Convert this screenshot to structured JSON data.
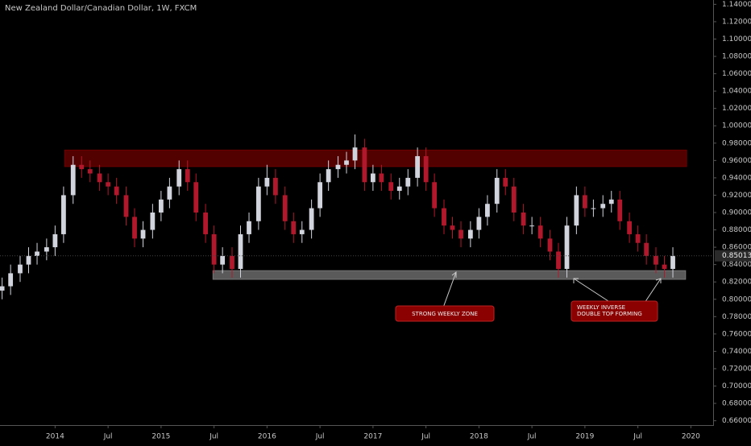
{
  "chart_data": {
    "type": "candlestick",
    "title": "New Zealand Dollar/Canadian Dollar, 1W, FXCM",
    "up_color": "#d1d4dc",
    "down_color": "#b2182b",
    "x": [
      2013.5,
      2013.58,
      2013.67,
      2013.75,
      2013.83,
      2013.92,
      2014.0,
      2014.08,
      2014.17,
      2014.25,
      2014.33,
      2014.42,
      2014.5,
      2014.58,
      2014.67,
      2014.75,
      2014.83,
      2014.92,
      2015.0,
      2015.08,
      2015.17,
      2015.25,
      2015.33,
      2015.42,
      2015.5,
      2015.58,
      2015.67,
      2015.75,
      2015.83,
      2015.92,
      2016.0,
      2016.08,
      2016.17,
      2016.25,
      2016.33,
      2016.42,
      2016.5,
      2016.58,
      2016.67,
      2016.75,
      2016.83,
      2016.92,
      2017.0,
      2017.08,
      2017.17,
      2017.25,
      2017.33,
      2017.42,
      2017.5,
      2017.58,
      2017.67,
      2017.75,
      2017.83,
      2017.92,
      2018.0,
      2018.08,
      2018.17,
      2018.25,
      2018.33,
      2018.42,
      2018.5,
      2018.58,
      2018.67,
      2018.75,
      2018.83,
      2018.92,
      2019.0,
      2019.08,
      2019.17,
      2019.25,
      2019.33,
      2019.42,
      2019.5,
      2019.58,
      2019.67,
      2019.75,
      2019.83
    ],
    "open": [
      0.81,
      0.815,
      0.83,
      0.84,
      0.85,
      0.855,
      0.86,
      0.875,
      0.92,
      0.955,
      0.95,
      0.945,
      0.935,
      0.93,
      0.92,
      0.895,
      0.87,
      0.88,
      0.9,
      0.915,
      0.93,
      0.95,
      0.935,
      0.9,
      0.875,
      0.84,
      0.85,
      0.835,
      0.875,
      0.89,
      0.93,
      0.94,
      0.92,
      0.89,
      0.875,
      0.88,
      0.905,
      0.935,
      0.95,
      0.955,
      0.96,
      0.975,
      0.935,
      0.945,
      0.935,
      0.925,
      0.93,
      0.94,
      0.965,
      0.935,
      0.905,
      0.885,
      0.88,
      0.87,
      0.88,
      0.895,
      0.91,
      0.94,
      0.93,
      0.9,
      0.885,
      0.885,
      0.87,
      0.855,
      0.835,
      0.885,
      0.92,
      0.905,
      0.905,
      0.91,
      0.915,
      0.89,
      0.875,
      0.865,
      0.85,
      0.84,
      0.835
    ],
    "high": [
      0.825,
      0.84,
      0.85,
      0.86,
      0.865,
      0.87,
      0.885,
      0.93,
      0.965,
      0.965,
      0.96,
      0.955,
      0.945,
      0.94,
      0.93,
      0.905,
      0.89,
      0.91,
      0.925,
      0.94,
      0.96,
      0.96,
      0.945,
      0.91,
      0.885,
      0.86,
      0.86,
      0.885,
      0.9,
      0.94,
      0.955,
      0.95,
      0.93,
      0.9,
      0.89,
      0.915,
      0.945,
      0.96,
      0.965,
      0.97,
      0.99,
      0.985,
      0.955,
      0.955,
      0.945,
      0.94,
      0.95,
      0.975,
      0.975,
      0.945,
      0.915,
      0.895,
      0.89,
      0.89,
      0.905,
      0.92,
      0.95,
      0.95,
      0.94,
      0.91,
      0.895,
      0.895,
      0.88,
      0.865,
      0.895,
      0.93,
      0.93,
      0.915,
      0.92,
      0.925,
      0.925,
      0.9,
      0.885,
      0.875,
      0.86,
      0.85,
      0.86
    ],
    "low": [
      0.8,
      0.805,
      0.82,
      0.83,
      0.84,
      0.845,
      0.85,
      0.865,
      0.91,
      0.94,
      0.935,
      0.925,
      0.92,
      0.91,
      0.885,
      0.86,
      0.86,
      0.87,
      0.89,
      0.905,
      0.92,
      0.925,
      0.89,
      0.865,
      0.83,
      0.83,
      0.825,
      0.825,
      0.865,
      0.88,
      0.92,
      0.91,
      0.88,
      0.865,
      0.865,
      0.87,
      0.895,
      0.925,
      0.94,
      0.945,
      0.95,
      0.925,
      0.925,
      0.925,
      0.915,
      0.915,
      0.92,
      0.93,
      0.925,
      0.895,
      0.875,
      0.87,
      0.86,
      0.86,
      0.87,
      0.885,
      0.9,
      0.92,
      0.89,
      0.875,
      0.875,
      0.86,
      0.845,
      0.825,
      0.825,
      0.875,
      0.895,
      0.895,
      0.895,
      0.9,
      0.88,
      0.865,
      0.855,
      0.84,
      0.83,
      0.825,
      0.825
    ],
    "close": [
      0.815,
      0.83,
      0.84,
      0.85,
      0.855,
      0.86,
      0.875,
      0.92,
      0.955,
      0.95,
      0.945,
      0.935,
      0.93,
      0.92,
      0.895,
      0.87,
      0.88,
      0.9,
      0.915,
      0.93,
      0.95,
      0.935,
      0.9,
      0.875,
      0.84,
      0.85,
      0.835,
      0.875,
      0.89,
      0.93,
      0.94,
      0.92,
      0.89,
      0.875,
      0.88,
      0.905,
      0.935,
      0.95,
      0.955,
      0.96,
      0.975,
      0.935,
      0.945,
      0.935,
      0.925,
      0.93,
      0.94,
      0.965,
      0.935,
      0.905,
      0.885,
      0.88,
      0.87,
      0.88,
      0.895,
      0.91,
      0.94,
      0.93,
      0.9,
      0.885,
      0.885,
      0.87,
      0.855,
      0.835,
      0.885,
      0.92,
      0.905,
      0.905,
      0.91,
      0.915,
      0.89,
      0.875,
      0.865,
      0.85,
      0.84,
      0.835,
      0.85
    ],
    "last_price": 0.85013,
    "zones": [
      {
        "top": 0.972,
        "bottom": 0.953,
        "start": 2014.09,
        "end": 2019.96,
        "color": "#6e0000"
      },
      {
        "top": 0.833,
        "bottom": 0.823,
        "start": 2015.49,
        "end": 2019.95,
        "color": "#787878"
      }
    ],
    "annotations": [
      [
        "STRONG WEEKLY ZONE"
      ],
      [
        "WEEKLY INVERSE",
        "DOUBLE TOP FORMING"
      ]
    ],
    "xlim": [
      2013.48,
      2020.21
    ],
    "xticks": [
      {
        "value": 2014,
        "label": "2014"
      },
      {
        "value": 2014.5,
        "label": "Jul"
      },
      {
        "value": 2015,
        "label": "2015"
      },
      {
        "value": 2015.5,
        "label": "Jul"
      },
      {
        "value": 2016,
        "label": "2016"
      },
      {
        "value": 2016.5,
        "label": "Jul"
      },
      {
        "value": 2017,
        "label": "2017"
      },
      {
        "value": 2017.5,
        "label": "Jul"
      },
      {
        "value": 2018,
        "label": "2018"
      },
      {
        "value": 2018.5,
        "label": "Jul"
      },
      {
        "value": 2019,
        "label": "2019"
      },
      {
        "value": 2019.5,
        "label": "Jul"
      },
      {
        "value": 2020,
        "label": "2020"
      }
    ],
    "ylim": [
      0.655,
      1.145
    ],
    "yticks": [
      {
        "value": 0.66,
        "label": "0.66000"
      },
      {
        "value": 0.68,
        "label": "0.68000"
      },
      {
        "value": 0.7,
        "label": "0.70000"
      },
      {
        "value": 0.72,
        "label": "0.72000"
      },
      {
        "value": 0.74,
        "label": "0.74000"
      },
      {
        "value": 0.76,
        "label": "0.76000"
      },
      {
        "value": 0.78,
        "label": "0.78000"
      },
      {
        "value": 0.8,
        "label": "0.80000"
      },
      {
        "value": 0.82,
        "label": "0.82000"
      },
      {
        "value": 0.84,
        "label": "0.84000"
      },
      {
        "value": 0.86,
        "label": "0.86000"
      },
      {
        "value": 0.88,
        "label": "0.88000"
      },
      {
        "value": 0.9,
        "label": "0.90000"
      },
      {
        "value": 0.92,
        "label": "0.92000"
      },
      {
        "value": 0.94,
        "label": "0.94000"
      },
      {
        "value": 0.96,
        "label": "0.96000"
      },
      {
        "value": 0.98,
        "label": "0.98000"
      },
      {
        "value": 1.0,
        "label": "1.00000"
      },
      {
        "value": 1.02,
        "label": "1.02000"
      },
      {
        "value": 1.04,
        "label": "1.04000"
      },
      {
        "value": 1.06,
        "label": "1.06000"
      },
      {
        "value": 1.08,
        "label": "1.08000"
      },
      {
        "value": 1.1,
        "label": "1.10000"
      },
      {
        "value": 1.12,
        "label": "1.12000"
      },
      {
        "value": 1.14,
        "label": "1.14000"
      }
    ]
  }
}
